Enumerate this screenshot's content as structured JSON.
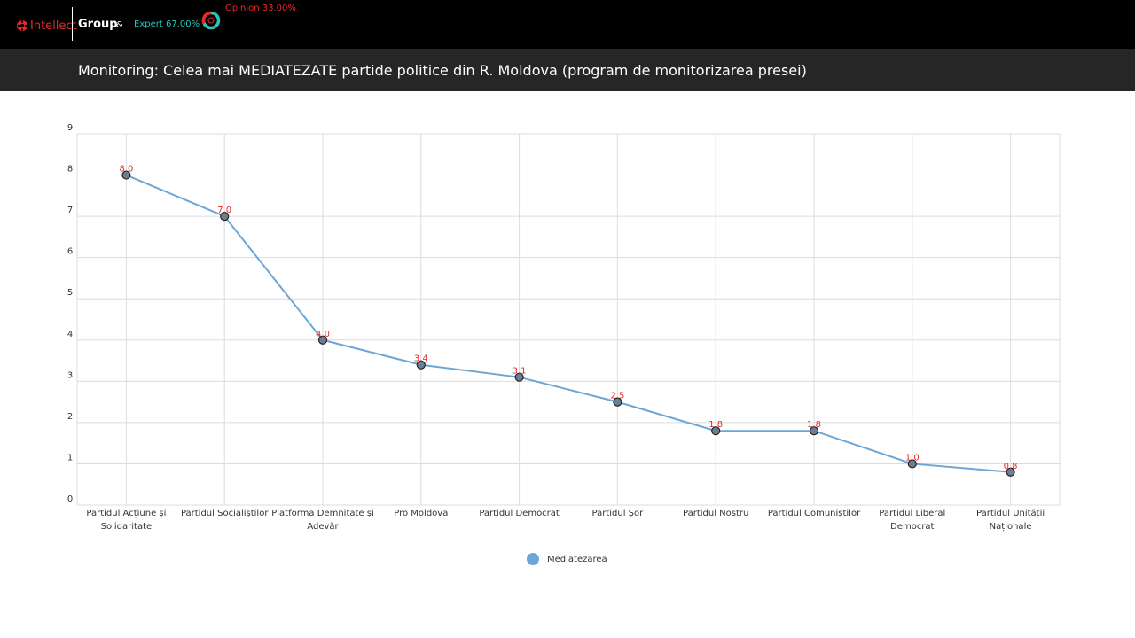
{
  "header": {
    "brand_word": "Intellect",
    "brand_group": "Group",
    "ampersand": "&",
    "expert_label": "Expert 67.00%",
    "opinion_label": "Opinion 33.00%",
    "brand_color": "#e32b2b",
    "expert_color": "#29c5b8"
  },
  "page": {
    "title": "Monitoring: Celea mai MEDIATEZATE partide politice din R. Moldova (program de monitorizarea presei)"
  },
  "chart_data": {
    "type": "line",
    "categories": [
      [
        "Partidul Acțiune și",
        "Solidaritate"
      ],
      [
        "Partidul Socialiștilor"
      ],
      [
        "Platforma Demnitate și",
        "Adevăr"
      ],
      [
        "Pro Moldova"
      ],
      [
        "Partidul Democrat"
      ],
      [
        "Partidul Șor"
      ],
      [
        "Partidul Nostru"
      ],
      [
        "Partidul Comuniștilor"
      ],
      [
        "Partidul Liberal",
        "Democrat"
      ],
      [
        "Partidul Unității",
        "Naționale"
      ]
    ],
    "series": [
      {
        "name": "Mediatezarea",
        "values": [
          8.0,
          7.0,
          4.0,
          3.4,
          3.1,
          2.5,
          1.8,
          1.8,
          1.0,
          0.8
        ],
        "labels": [
          "8.0",
          "7.0",
          "4.0",
          "3.4",
          "3.1",
          "2.5",
          "1.8",
          "1.8",
          "1.0",
          "0.8"
        ],
        "color": "#6ca6d6"
      }
    ],
    "ylim": [
      0,
      9
    ],
    "yticks": [
      "0",
      "1",
      "2",
      "3",
      "4",
      "5",
      "6",
      "7",
      "8",
      "9"
    ],
    "grid": true,
    "legend_position": "bottom-center",
    "label_color": "#e32b2b"
  },
  "legend": {
    "label": "Mediatezarea"
  }
}
